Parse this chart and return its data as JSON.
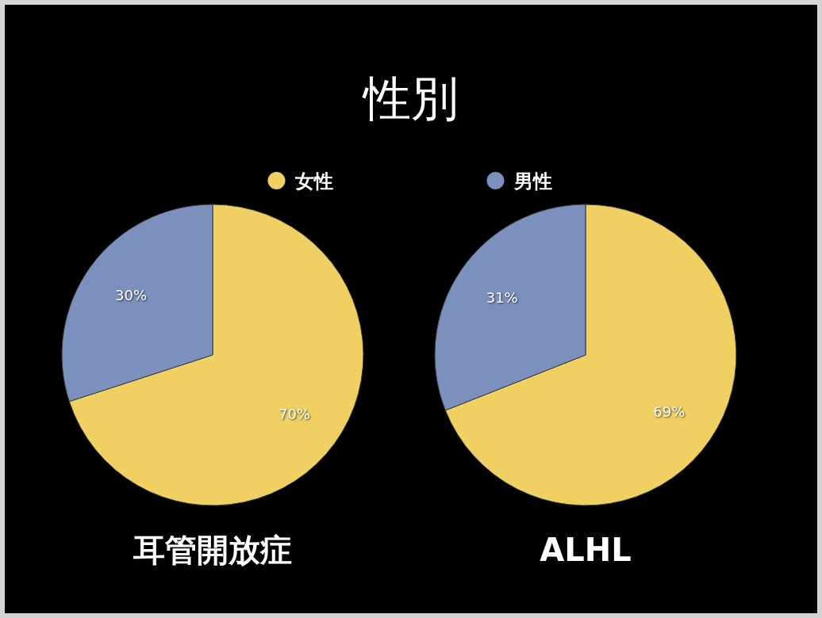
{
  "chart_data": {
    "type": "pie",
    "title": "性別",
    "legend": "top",
    "categories": [
      "女性",
      "男性"
    ],
    "colors": [
      "#f1d063",
      "#7c90be"
    ],
    "series": [
      {
        "name": "耳管開放症",
        "values": [
          70,
          30
        ],
        "value_labels": [
          "70%",
          "30%"
        ]
      },
      {
        "name": "ALHL",
        "values": [
          69,
          31
        ],
        "value_labels": [
          "69%",
          "31%"
        ]
      }
    ]
  }
}
